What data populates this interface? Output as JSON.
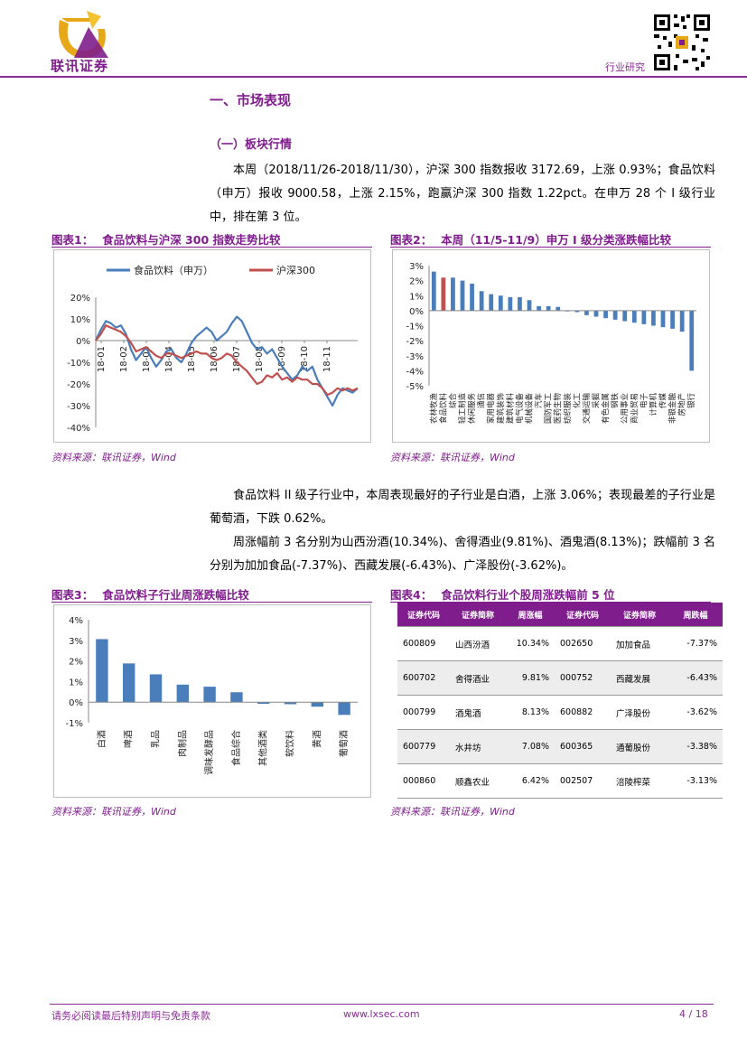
{
  "header": {
    "logo_text": "联讯证券",
    "section_tag": "行业研究"
  },
  "section": {
    "h1": "一、市场表现",
    "h2": "（一）板块行情"
  },
  "paragraphs": {
    "p1": "本周（2018/11/26-2018/11/30），沪深 300 指数报收 3172.69，上涨 0.93%；食品饮料（申万）报收 9000.58，上涨 2.15%，跑赢沪深 300 指数 1.22pct。在申万 28 个 I 级行业中，排在第 3 位。",
    "p2": "食品饮料 II 级子行业中，本周表现最好的子行业是白酒，上涨 3.06%；表现最差的子行业是葡萄酒，下跌 0.62%。",
    "p3": "周涨幅前 3 名分别为山西汾酒(10.34%)、舍得酒业(9.81%)、酒鬼酒(8.13%)；跌幅前 3 名分别为加加食品(-7.37%)、西藏发展(-6.43%)、广泽股份(-3.62%)。"
  },
  "figures": {
    "f1": {
      "label": "图表1：",
      "title": "食品饮料与沪深 300 指数走势比较",
      "source": "资料来源：联讯证券，Wind"
    },
    "f2": {
      "label": "图表2：",
      "title": "本周（11/5-11/9）申万 I 级分类涨跌幅比较",
      "source": "资料来源：联讯证券，Wind"
    },
    "f3": {
      "label": "图表3：",
      "title": "食品饮料子行业周涨跌幅比较",
      "source": "资料来源：联讯证券，Wind"
    },
    "f4": {
      "label": "图表4：",
      "title": "食品饮料行业个股周涨跌幅前 5 位",
      "source": "资料来源：联讯证券，Wind"
    }
  },
  "chart_data": [
    {
      "type": "line",
      "title": "食品饮料与沪深 300 指数走势比较",
      "x_ticks": [
        "18-01",
        "18-02",
        "18-03",
        "18-04",
        "18-05",
        "18-06",
        "18-07",
        "18-08",
        "18-09",
        "18-10",
        "18-11"
      ],
      "y_ticks": [
        "20%",
        "10%",
        "0%",
        "-10%",
        "-20%",
        "-30%",
        "-40%"
      ],
      "ylim": [
        -40,
        20
      ],
      "series": [
        {
          "name": "食品饮料（申万）",
          "color": "#4a7ebb",
          "values": [
            0,
            5,
            9,
            8,
            6,
            7,
            3,
            -4,
            -9,
            -6,
            -3,
            -8,
            -12,
            -9,
            -5,
            -4,
            -8,
            -10,
            -6,
            -1,
            2,
            4,
            6,
            4,
            0,
            2,
            4,
            8,
            11,
            9,
            4,
            -1,
            -4,
            -3,
            -6,
            -4,
            -8,
            -12,
            -15,
            -18,
            -16,
            -12,
            -14,
            -12,
            -18,
            -22,
            -26,
            -30,
            -25,
            -22,
            -23,
            -24,
            -22
          ]
        },
        {
          "name": "沪深300",
          "color": "#c0504d",
          "values": [
            0,
            3,
            7,
            6,
            5,
            4,
            2,
            -1,
            -5,
            -4,
            -3,
            -5,
            -7,
            -8,
            -6,
            -6,
            -7,
            -8,
            -7,
            -6,
            -5,
            -6,
            -6,
            -8,
            -9,
            -8,
            -6,
            -7,
            -10,
            -12,
            -14,
            -17,
            -20,
            -19,
            -16,
            -17,
            -15,
            -18,
            -17,
            -19,
            -17,
            -18,
            -18,
            -20,
            -20,
            -22,
            -25,
            -24,
            -22,
            -23,
            -22,
            -23,
            -22
          ]
        }
      ]
    },
    {
      "type": "bar",
      "title": "本周（11/5-11/9）申万 I 级分类涨跌幅比较",
      "y_ticks": [
        "3%",
        "2%",
        "1%",
        "0%",
        "-1%",
        "-2%",
        "-3%",
        "-4%",
        "-5%"
      ],
      "ylim": [
        -5,
        3
      ],
      "categories": [
        "农林牧渔",
        "食品饮料",
        "综合",
        "轻工制造",
        "休闲服务",
        "通信",
        "家用电器",
        "建筑装饰",
        "建筑材料",
        "电气设备",
        "机械设备",
        "汽车",
        "国防军工",
        "医药生物",
        "纺织服装",
        "化工",
        "交通运输",
        "采掘",
        "有色金属",
        "钢铁",
        "公用事业",
        "商业贸易",
        "电子",
        "计算机",
        "传媒",
        "非银金融",
        "房地产",
        "银行"
      ],
      "values": [
        2.6,
        2.2,
        2.2,
        2.0,
        1.8,
        1.3,
        1.1,
        1.0,
        0.9,
        0.9,
        0.7,
        0.3,
        0.3,
        0.25,
        -0.05,
        -0.1,
        -0.3,
        -0.4,
        -0.5,
        -0.6,
        -0.7,
        -0.8,
        -0.9,
        -1.0,
        -1.1,
        -1.2,
        -1.4,
        -4.0
      ],
      "highlight_index": 1,
      "colors": {
        "default": "#4a7ebb",
        "highlight": "#c0504d"
      }
    },
    {
      "type": "bar",
      "title": "食品饮料子行业周涨跌幅比较",
      "y_ticks": [
        "4%",
        "3%",
        "2%",
        "1%",
        "0%",
        "-1%"
      ],
      "ylim": [
        -1,
        4
      ],
      "categories": [
        "白酒",
        "啤酒",
        "乳品",
        "肉制品",
        "调味发酵品",
        "食品综合",
        "其他酒类",
        "软饮料",
        "黄酒",
        "葡萄酒"
      ],
      "values": [
        3.06,
        1.88,
        1.35,
        0.85,
        0.75,
        0.48,
        -0.08,
        -0.1,
        -0.22,
        -0.62
      ],
      "colors": {
        "default": "#4a7ebb"
      }
    }
  ],
  "stock_table": {
    "headers": [
      "证券代码",
      "证券简称",
      "周涨幅",
      "证券代码",
      "证券简称",
      "周跌幅"
    ],
    "rows": [
      [
        "600809",
        "山西汾酒",
        "10.34%",
        "002650",
        "加加食品",
        "-7.37%"
      ],
      [
        "600702",
        "舍得酒业",
        "9.81%",
        "000752",
        "西藏发展",
        "-6.43%"
      ],
      [
        "000799",
        "酒鬼酒",
        "8.13%",
        "600882",
        "广泽股份",
        "-3.62%"
      ],
      [
        "600779",
        "水井坊",
        "7.08%",
        "600365",
        "通葡股份",
        "-3.38%"
      ],
      [
        "000860",
        "顺鑫农业",
        "6.42%",
        "002507",
        "涪陵榨菜",
        "-3.13%"
      ]
    ]
  },
  "footer": {
    "disclaimer": "请务必阅读最后特别声明与免责条款",
    "website": "www.lxsec.com",
    "page": "4 / 18"
  }
}
